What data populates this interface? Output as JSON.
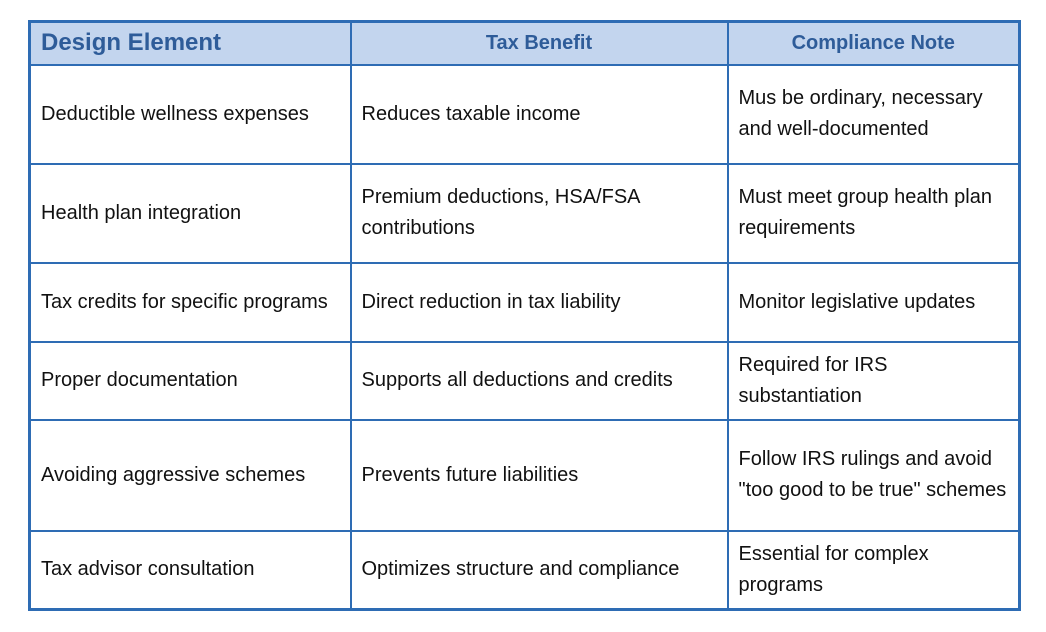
{
  "chart_data": {
    "type": "table",
    "columns": [
      "Design Element",
      "Tax Benefit",
      "Compliance Note"
    ],
    "rows": [
      [
        "Deductible wellness expenses",
        "Reduces taxable income",
        "Mus be ordinary, necessary and well-documented"
      ],
      [
        "Health plan integration",
        "Premium deductions, HSA/FSA contributions",
        "Must meet group health plan requirements"
      ],
      [
        "Tax credits for specific programs",
        "Direct reduction in tax liability",
        "Monitor legislative updates"
      ],
      [
        "Proper documentation",
        "Supports all deductions and credits",
        "Required for IRS substantiation"
      ],
      [
        "Avoiding aggressive schemes",
        "Prevents future liabilities",
        "Follow IRS rulings and avoid \"too good to be true\" schemes"
      ],
      [
        "Tax advisor consultation",
        "Optimizes structure and compliance",
        "Essential for complex programs"
      ]
    ],
    "layout": {
      "legend": "none",
      "grid": "full-borders",
      "header_alignment": [
        "left",
        "center",
        "center"
      ],
      "body_alignment": "left"
    },
    "colors": {
      "header_background": "#c3d5ee",
      "header_text": "#2e5c99",
      "border": "#2e6cb4",
      "body_text": "#111111",
      "page_background": "#ffffff"
    }
  }
}
